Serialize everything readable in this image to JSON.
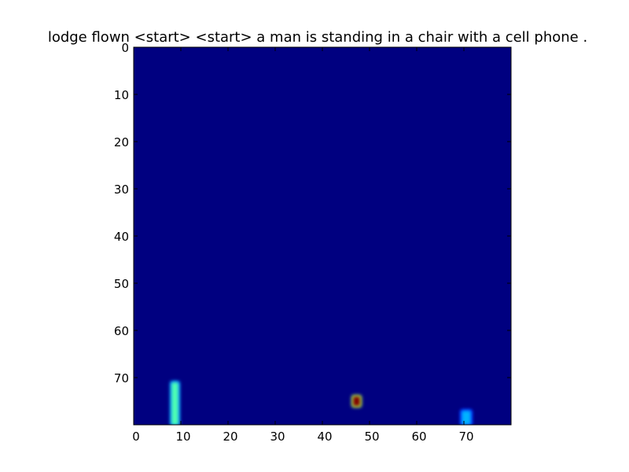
{
  "chart_data": {
    "type": "heatmap",
    "title": "lodge flown <start> <start> a man is standing in a chair with a cell phone .",
    "xlabel": "",
    "ylabel": "",
    "xlim": [
      0,
      80
    ],
    "ylim": [
      80,
      0
    ],
    "x_ticks": [
      0,
      10,
      20,
      30,
      40,
      50,
      60,
      70
    ],
    "y_ticks": [
      0,
      10,
      20,
      30,
      40,
      50,
      60,
      70
    ],
    "grid": false,
    "colormap": "jet",
    "background_value": 0.0,
    "hotspots": [
      {
        "x0": 8,
        "x1": 9.5,
        "y0": 71,
        "y1": 80,
        "value": 0.45
      },
      {
        "x0": 46.5,
        "x1": 48,
        "y0": 74,
        "y1": 76,
        "value": 1.0
      },
      {
        "x0": 69.5,
        "x1": 71.5,
        "y0": 77,
        "y1": 80,
        "value": 0.3
      }
    ]
  }
}
